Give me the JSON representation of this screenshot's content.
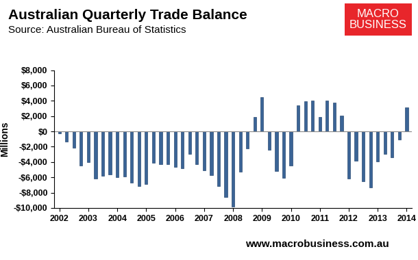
{
  "chart_data": {
    "type": "bar",
    "title": "Australian Quarterly Trade Balance",
    "subtitle": "Source: Australian Bureau of Statistics",
    "y_label": "Millions",
    "annotations": [
      "MACRO\nBUSINESS",
      "www.macrobusiness.com.au"
    ],
    "categories": [
      "2002",
      null,
      null,
      null,
      "2003",
      null,
      null,
      null,
      "2004",
      null,
      null,
      null,
      "2005",
      null,
      null,
      null,
      "2006",
      null,
      null,
      null,
      "2007",
      null,
      null,
      null,
      "2008",
      null,
      null,
      null,
      "2009",
      null,
      null,
      null,
      "2010",
      null,
      null,
      null,
      "2011",
      null,
      null,
      null,
      "2012",
      null,
      null,
      null,
      "2013",
      null,
      null,
      null,
      "2014"
    ],
    "values": [
      -300,
      -1300,
      -2100,
      -4500,
      -4000,
      -6200,
      -5800,
      -5600,
      -6000,
      -5900,
      -6700,
      -7100,
      -6900,
      -4100,
      -4300,
      -4300,
      -4600,
      -4800,
      -2900,
      -4300,
      -5100,
      -5700,
      -7100,
      -8600,
      -9800,
      -5300,
      -2200,
      1900,
      4500,
      -2400,
      -5200,
      -6100,
      -4500,
      3400,
      3900,
      4000,
      1900,
      4000,
      3800,
      2100,
      -6200,
      -3800,
      -6500,
      -7300,
      -3900,
      -2900,
      -3400,
      -1100,
      3100
    ],
    "color": "#3b6496",
    "ylim": [
      -10000,
      8000
    ],
    "yticks": [
      {
        "value": -10000,
        "label": "-$10,000"
      },
      {
        "value": -8000,
        "label": "-$8,000"
      },
      {
        "value": -6000,
        "label": "-$6,000"
      },
      {
        "value": -4000,
        "label": "-$4,000"
      },
      {
        "value": -2000,
        "label": "-$2,000"
      },
      {
        "value": 0,
        "label": "$0"
      },
      {
        "value": 2000,
        "label": "$2,000"
      },
      {
        "value": 4000,
        "label": "$4,000"
      },
      {
        "value": 6000,
        "label": "$6,000"
      },
      {
        "value": 8000,
        "label": "$8,000"
      }
    ],
    "grid": false
  }
}
